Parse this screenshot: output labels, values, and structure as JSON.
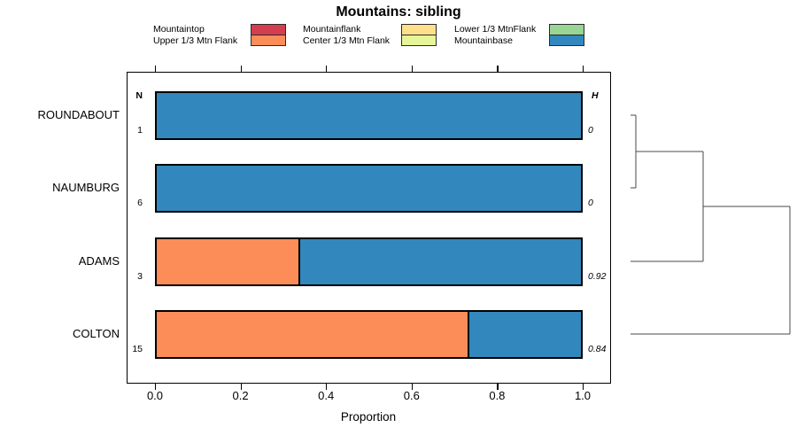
{
  "title": "Mountains: sibling",
  "headers": {
    "n": "N",
    "h": "H"
  },
  "axis": {
    "xlabel": "Proportion",
    "tick_labels": [
      "0.0",
      "0.2",
      "0.4",
      "0.6",
      "0.8",
      "1.0"
    ]
  },
  "legend": {
    "columns": [
      {
        "items": [
          {
            "label": "Mountaintop",
            "color": "#d53e4f"
          },
          {
            "label": "Upper 1/3 Mtn Flank",
            "color": "#fc8d59"
          }
        ]
      },
      {
        "items": [
          {
            "label": "Mountainflank",
            "color": "#fee08b"
          },
          {
            "label": "Center 1/3 Mtn Flank",
            "color": "#e6f598"
          }
        ]
      },
      {
        "items": [
          {
            "label": "Lower 1/3 MtnFlank",
            "color": "#99d594"
          },
          {
            "label": "Mountainbase",
            "color": "#3288bd"
          }
        ]
      }
    ]
  },
  "chart_data": {
    "type": "bar",
    "subtype": "stacked-horizontal-proportion",
    "title": "Mountains: sibling",
    "xlabel": "Proportion",
    "xlim": [
      0,
      1
    ],
    "x_ticks": [
      0,
      0.2,
      0.4,
      0.6,
      0.8,
      1.0
    ],
    "grid": false,
    "legend_position": "top",
    "categories": [
      "ROUNDABOUT",
      "NAUMBURG",
      "ADAMS",
      "COLTON"
    ],
    "N": [
      1,
      6,
      3,
      15
    ],
    "H": [
      "0",
      "0",
      "0.92",
      "0.84"
    ],
    "series": [
      {
        "name": "Mountaintop",
        "color": "#d53e4f",
        "values": [
          0,
          0,
          0,
          0
        ]
      },
      {
        "name": "Upper 1/3 Mtn Flank",
        "color": "#fc8d59",
        "values": [
          0,
          0,
          0.333,
          0.733
        ]
      },
      {
        "name": "Mountainflank",
        "color": "#fee08b",
        "values": [
          0,
          0,
          0,
          0
        ]
      },
      {
        "name": "Center 1/3 Mtn Flank",
        "color": "#e6f598",
        "values": [
          0,
          0,
          0,
          0
        ]
      },
      {
        "name": "Lower 1/3 MtnFlank",
        "color": "#99d594",
        "values": [
          0,
          0,
          0,
          0
        ]
      },
      {
        "name": "Mountainbase",
        "color": "#3288bd",
        "values": [
          1,
          1,
          0.667,
          0.267
        ]
      }
    ],
    "dendrogram": {
      "side": "right",
      "leaves": [
        "ROUNDABOUT",
        "NAUMBURG",
        "ADAMS",
        "COLTON"
      ],
      "merges": [
        {
          "join": [
            0,
            1
          ],
          "height": 0.033
        },
        {
          "join": [
            "m0",
            2
          ],
          "height": 0.456
        },
        {
          "join": [
            "m1",
            3
          ],
          "height": 1.0
        }
      ]
    }
  }
}
